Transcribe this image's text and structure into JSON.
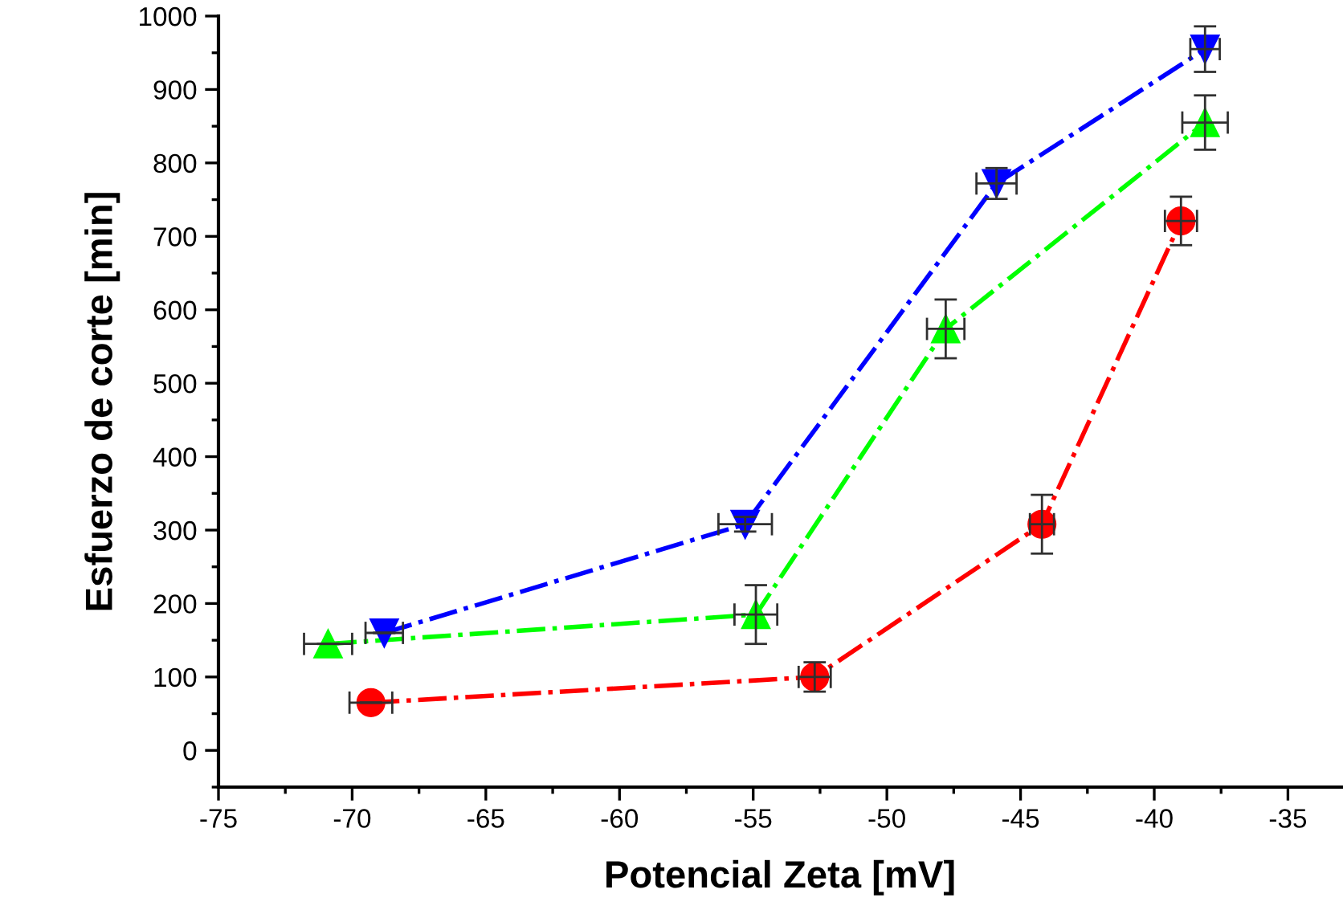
{
  "chart_data": {
    "type": "line",
    "xlabel": "Potencial Zeta [mV]",
    "ylabel": "Esfuerzo de corte [min]",
    "xlim": [
      -75,
      -33
    ],
    "xticks": [
      -75,
      -70,
      -65,
      -60,
      -55,
      -50,
      -45,
      -40,
      -35
    ],
    "ylim": [
      -50,
      1000
    ],
    "yticks": [
      0,
      100,
      200,
      300,
      400,
      500,
      600,
      700,
      800,
      900,
      1000
    ],
    "grid": false,
    "line_style": "dashdot",
    "series": [
      {
        "color": "#ff0000",
        "marker": "circle",
        "x": [
          -69.3,
          -52.7,
          -44.2,
          -39.0
        ],
        "values": [
          65,
          100,
          308,
          721
        ],
        "errors": [
          null,
          20,
          40,
          33
        ],
        "xerrors": [
          0.8,
          0.6,
          0.45,
          0.6
        ]
      },
      {
        "color": "#00ff00",
        "marker": "triangle",
        "x": [
          -70.9,
          -54.9,
          -47.8,
          -38.1
        ],
        "values": [
          145,
          185,
          574,
          855
        ],
        "errors": [
          null,
          40,
          40,
          37
        ],
        "xerrors": [
          0.9,
          0.8,
          0.7,
          0.85
        ]
      },
      {
        "color": "#0000ff",
        "marker": "triangle_down",
        "x": [
          -68.8,
          -55.3,
          -45.9,
          -38.1
        ],
        "values": [
          160,
          308,
          772,
          955
        ],
        "errors": [
          null,
          10,
          21,
          31
        ],
        "xerrors": [
          0.7,
          1.0,
          0.75,
          0.55
        ]
      }
    ]
  }
}
